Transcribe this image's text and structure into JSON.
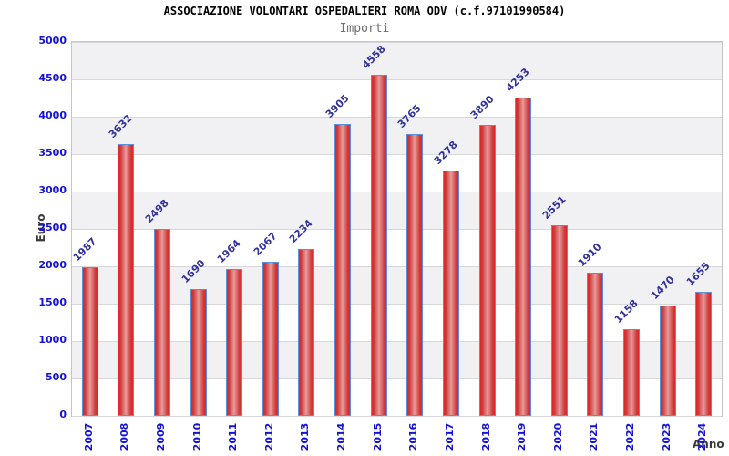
{
  "chart_data": {
    "type": "bar",
    "title": "ASSOCIAZIONE VOLONTARI OSPEDALIERI ROMA ODV (c.f.97101990584)",
    "subtitle": "Importi",
    "xlabel": "Anno",
    "ylabel": "Euro",
    "categories": [
      "2007",
      "2008",
      "2009",
      "2010",
      "2011",
      "2012",
      "2013",
      "2014",
      "2015",
      "2016",
      "2017",
      "2018",
      "2019",
      "2020",
      "2021",
      "2022",
      "2023",
      "2024"
    ],
    "values": [
      1987,
      3632,
      2498,
      1690,
      1964,
      2067,
      2234,
      3905,
      4558,
      3765,
      3278,
      3890,
      4253,
      2551,
      1910,
      1158,
      1470,
      1655
    ],
    "ylim": [
      0,
      5000
    ],
    "ytick_step": 500,
    "yticks": [
      0,
      500,
      1000,
      1500,
      2000,
      2500,
      3000,
      3500,
      4000,
      4500,
      5000
    ],
    "grid": "horizontal gridlines with alternating gray/white bands",
    "legend": "none",
    "bar_value_labels_rotation_deg": -45,
    "x_tick_rotation_deg": -90
  },
  "colors": {
    "title": "#000000",
    "subtitle": "#6e6e6e",
    "band-gray": "#f1f1f3",
    "gridline": "#d8d8dc",
    "plot-border": "#c6c6c6",
    "bar-fill-edge": "#e82222",
    "bar-fill-mid": "#cc3b3b",
    "bar-fill-center": "#ea9a9a",
    "bar-border": "#5b8fe0",
    "tick-label": "#1414d2",
    "value-label": "#32329b",
    "axis-title": "#3a3a3a"
  }
}
